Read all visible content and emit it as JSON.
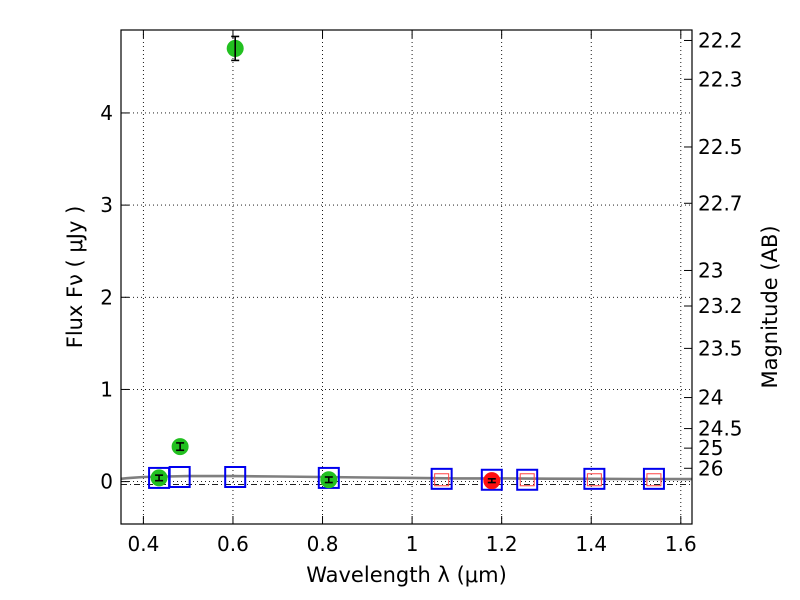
{
  "chart_data": {
    "type": "scatter",
    "title": "",
    "xlabel": "Wavelength  λ (μm)",
    "ylabel_left": "Flux  Fν  ( μJy )",
    "ylabel_right": "Magnitude (AB)",
    "xlim": [
      0.35,
      1.625
    ],
    "ylim": [
      -0.46,
      4.9
    ],
    "grid": true,
    "x_ticks": [
      0.4,
      0.6,
      0.8,
      1.0,
      1.2,
      1.4,
      1.6
    ],
    "x_tick_labels": [
      "0.4",
      "0.6",
      "0.8",
      "1",
      "1.2",
      "1.4",
      "1.6"
    ],
    "y_ticks": [
      0,
      1,
      2,
      3,
      4
    ],
    "y_tick_labels": [
      "0",
      "1",
      "2",
      "3",
      "4"
    ],
    "right_axis_ticks_mag": [
      22.2,
      22.3,
      22.5,
      22.7,
      23,
      23.2,
      23.5,
      24,
      24.5,
      25,
      26
    ],
    "right_axis_tick_labels": [
      "22.2",
      "22.3",
      "22.5",
      "22.7",
      "23",
      "23.2",
      "23.5",
      "24",
      "24.5",
      "25",
      "26"
    ],
    "series": [
      {
        "name": "observed_green",
        "marker": "circle",
        "color": "#22c020",
        "points": [
          {
            "x": 0.435,
            "y": 0.04,
            "err": 0.03
          },
          {
            "x": 0.482,
            "y": 0.38,
            "err": 0.04
          },
          {
            "x": 0.605,
            "y": 4.7,
            "err": 0.13
          },
          {
            "x": 0.814,
            "y": 0.02,
            "err": 0.03
          }
        ]
      },
      {
        "name": "observed_red",
        "marker": "circle",
        "color": "#ff1010",
        "points": [
          {
            "x": 1.178,
            "y": 0.01,
            "err": 0.02
          }
        ]
      },
      {
        "name": "model_blue_squares",
        "marker": "square",
        "color": "#0000ee",
        "points": [
          {
            "x": 0.435,
            "y": 0.04
          },
          {
            "x": 0.481,
            "y": 0.05
          },
          {
            "x": 0.605,
            "y": 0.05
          },
          {
            "x": 0.814,
            "y": 0.04
          },
          {
            "x": 1.066,
            "y": 0.03
          },
          {
            "x": 1.178,
            "y": 0.02
          },
          {
            "x": 1.257,
            "y": 0.02
          },
          {
            "x": 1.407,
            "y": 0.03
          },
          {
            "x": 1.54,
            "y": 0.03
          }
        ]
      },
      {
        "name": "model_red_squares",
        "marker": "square-small",
        "color": "#ff4040",
        "points": [
          {
            "x": 1.066,
            "y": 0.02
          },
          {
            "x": 1.257,
            "y": 0.02
          },
          {
            "x": 1.407,
            "y": 0.02
          },
          {
            "x": 1.54,
            "y": 0.02
          }
        ]
      },
      {
        "name": "sed_model",
        "marker": "line",
        "color": "#7f7f7f",
        "points": [
          {
            "x": 0.35,
            "y": 0.03
          },
          {
            "x": 0.37,
            "y": 0.04
          },
          {
            "x": 0.4,
            "y": 0.05
          },
          {
            "x": 0.45,
            "y": 0.055
          },
          {
            "x": 0.5,
            "y": 0.06
          },
          {
            "x": 0.55,
            "y": 0.06
          },
          {
            "x": 0.6,
            "y": 0.06
          },
          {
            "x": 0.7,
            "y": 0.055
          },
          {
            "x": 0.8,
            "y": 0.05
          },
          {
            "x": 0.9,
            "y": 0.045
          },
          {
            "x": 1.0,
            "y": 0.04
          },
          {
            "x": 1.1,
            "y": 0.035
          },
          {
            "x": 1.2,
            "y": 0.035
          },
          {
            "x": 1.3,
            "y": 0.032
          },
          {
            "x": 1.4,
            "y": 0.03
          },
          {
            "x": 1.5,
            "y": 0.028
          },
          {
            "x": 1.625,
            "y": 0.027
          }
        ]
      },
      {
        "name": "zero_line",
        "marker": "dashdot",
        "color": "#000000",
        "points": [
          {
            "x": 0.35,
            "y": -0.03
          },
          {
            "x": 1.625,
            "y": -0.03
          }
        ]
      }
    ]
  }
}
